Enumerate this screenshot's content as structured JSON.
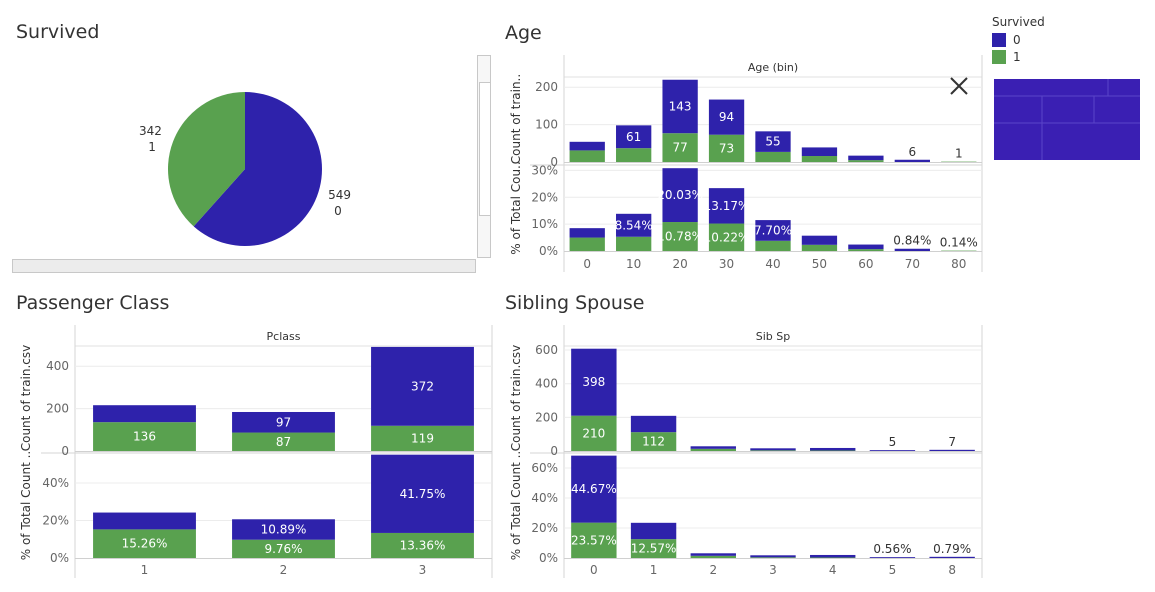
{
  "legend": {
    "title": "Survived",
    "items": [
      {
        "label": "0",
        "color": "#2e22ab"
      },
      {
        "label": "1",
        "color": "#59a14f"
      }
    ]
  },
  "colors": {
    "survived_0": "#2e22ab",
    "survived_1": "#59a14f",
    "minimap": "#3a1fb3"
  },
  "icons": {
    "close": "close-icon"
  },
  "chart_data": [
    {
      "id": "survived",
      "type": "pie",
      "title": "Survived",
      "slices": [
        {
          "name": "0",
          "value": 549,
          "label_value": "549",
          "label_name": "0",
          "color": "#2e22ab"
        },
        {
          "name": "1",
          "value": 342,
          "label_value": "342",
          "label_name": "1",
          "color": "#59a14f"
        }
      ]
    },
    {
      "id": "age",
      "type": "bar",
      "title": "Age",
      "column_header": "Age (bin)",
      "categories": [
        "0",
        "10",
        "20",
        "30",
        "40",
        "50",
        "60",
        "70",
        "80"
      ],
      "top": {
        "ylabel": "Count of train..",
        "ylim": [
          0,
          230
        ],
        "yticks": [
          "0",
          "100",
          "200"
        ],
        "ytick_values": [
          0,
          100,
          200
        ],
        "series": [
          {
            "name": "1",
            "values": [
              31,
              37,
              77,
              73,
              27,
              16,
              5,
              0,
              1
            ]
          },
          {
            "name": "0",
            "values": [
              23,
              61,
              143,
              94,
              55,
              23,
              12,
              6,
              0
            ]
          }
        ],
        "labels": [
          {
            "index": 1,
            "series": "0",
            "text": "61"
          },
          {
            "index": 2,
            "series": "0",
            "text": "143"
          },
          {
            "index": 3,
            "series": "0",
            "text": "94"
          },
          {
            "index": 4,
            "series": "0",
            "text": "55"
          },
          {
            "index": 2,
            "series": "1",
            "text": "77"
          },
          {
            "index": 3,
            "series": "1",
            "text": "73"
          },
          {
            "index": 7,
            "series": "total",
            "text": "6"
          },
          {
            "index": 8,
            "series": "total",
            "text": "1"
          }
        ]
      },
      "bottom": {
        "ylabel": "% of Total Cou..",
        "ylim": [
          0,
          32
        ],
        "yticks": [
          "0%",
          "10%",
          "20%",
          "30%"
        ],
        "ytick_values": [
          0,
          10,
          20,
          30
        ],
        "series": [
          {
            "name": "1",
            "values": [
              5.0,
              5.3,
              10.78,
              10.22,
              3.8,
              2.3,
              0.7,
              0.0,
              0.14
            ]
          },
          {
            "name": "0",
            "values": [
              3.5,
              8.54,
              20.03,
              13.17,
              7.7,
              3.4,
              1.7,
              0.84,
              0.0
            ]
          }
        ],
        "labels": [
          {
            "index": 1,
            "series": "0",
            "text": "8.54%"
          },
          {
            "index": 2,
            "series": "0",
            "text": "20.03%"
          },
          {
            "index": 3,
            "series": "0",
            "text": "13.17%"
          },
          {
            "index": 4,
            "series": "0",
            "text": "7.70%"
          },
          {
            "index": 2,
            "series": "1",
            "text": "10.78%"
          },
          {
            "index": 3,
            "series": "1",
            "text": "10.22%"
          },
          {
            "index": 7,
            "series": "total",
            "text": "0.84%"
          },
          {
            "index": 8,
            "series": "total",
            "text": "0.14%"
          }
        ]
      }
    },
    {
      "id": "pclass",
      "type": "bar",
      "title": "Passenger Class",
      "column_header": "Pclass",
      "categories": [
        "1",
        "2",
        "3"
      ],
      "top": {
        "ylabel": "Count of train.csv",
        "ylim": [
          0,
          500
        ],
        "yticks": [
          "0",
          "200",
          "400"
        ],
        "ytick_values": [
          0,
          200,
          400
        ],
        "series": [
          {
            "name": "1",
            "values": [
              136,
              87,
              119
            ]
          },
          {
            "name": "0",
            "values": [
              80,
              97,
              372
            ]
          }
        ],
        "labels": [
          {
            "index": 0,
            "series": "1",
            "text": "136"
          },
          {
            "index": 1,
            "series": "1",
            "text": "87"
          },
          {
            "index": 2,
            "series": "1",
            "text": "119"
          },
          {
            "index": 1,
            "series": "0",
            "text": "97"
          },
          {
            "index": 2,
            "series": "0",
            "text": "372"
          }
        ]
      },
      "bottom": {
        "ylabel": "% of Total Count ..",
        "ylim": [
          0,
          56
        ],
        "yticks": [
          "0%",
          "20%",
          "40%"
        ],
        "ytick_values": [
          0,
          20,
          40
        ],
        "series": [
          {
            "name": "1",
            "values": [
              15.26,
              9.76,
              13.36
            ]
          },
          {
            "name": "0",
            "values": [
              8.98,
              10.89,
              41.75
            ]
          }
        ],
        "labels": [
          {
            "index": 0,
            "series": "1",
            "text": "15.26%"
          },
          {
            "index": 1,
            "series": "1",
            "text": "9.76%"
          },
          {
            "index": 2,
            "series": "1",
            "text": "13.36%"
          },
          {
            "index": 1,
            "series": "0",
            "text": "10.89%"
          },
          {
            "index": 2,
            "series": "0",
            "text": "41.75%"
          }
        ]
      }
    },
    {
      "id": "sibsp",
      "type": "bar",
      "title": "Sibling Spouse",
      "column_header": "Sib Sp",
      "categories": [
        "0",
        "1",
        "2",
        "3",
        "4",
        "5",
        "8"
      ],
      "top": {
        "ylabel": "Count of train.csv",
        "ylim": [
          0,
          630
        ],
        "yticks": [
          "0",
          "200",
          "400",
          "600"
        ],
        "ytick_values": [
          0,
          200,
          400,
          600
        ],
        "series": [
          {
            "name": "1",
            "values": [
              210,
              112,
              13,
              4,
              3,
              0,
              0
            ]
          },
          {
            "name": "0",
            "values": [
              398,
              97,
              15,
              12,
              15,
              5,
              7
            ]
          }
        ],
        "labels": [
          {
            "index": 0,
            "series": "0",
            "text": "398"
          },
          {
            "index": 0,
            "series": "1",
            "text": "210"
          },
          {
            "index": 1,
            "series": "1",
            "text": "112"
          },
          {
            "index": 5,
            "series": "total",
            "text": "5"
          },
          {
            "index": 6,
            "series": "total",
            "text": "7"
          }
        ]
      },
      "bottom": {
        "ylabel": "% of Total Count ..",
        "ylim": [
          0,
          70
        ],
        "yticks": [
          "0%",
          "20%",
          "40%",
          "60%"
        ],
        "ytick_values": [
          0,
          20,
          40,
          60
        ],
        "series": [
          {
            "name": "1",
            "values": [
              23.57,
              12.57,
              1.46,
              0.45,
              0.34,
              0.0,
              0.0
            ]
          },
          {
            "name": "0",
            "values": [
              44.67,
              10.89,
              1.68,
              1.35,
              1.68,
              0.56,
              0.79
            ]
          }
        ],
        "labels": [
          {
            "index": 0,
            "series": "0",
            "text": "44.67%"
          },
          {
            "index": 0,
            "series": "1",
            "text": "23.57%"
          },
          {
            "index": 1,
            "series": "1",
            "text": "12.57%"
          },
          {
            "index": 5,
            "series": "total",
            "text": "0.56%"
          },
          {
            "index": 6,
            "series": "total",
            "text": "0.79%"
          }
        ]
      }
    }
  ]
}
